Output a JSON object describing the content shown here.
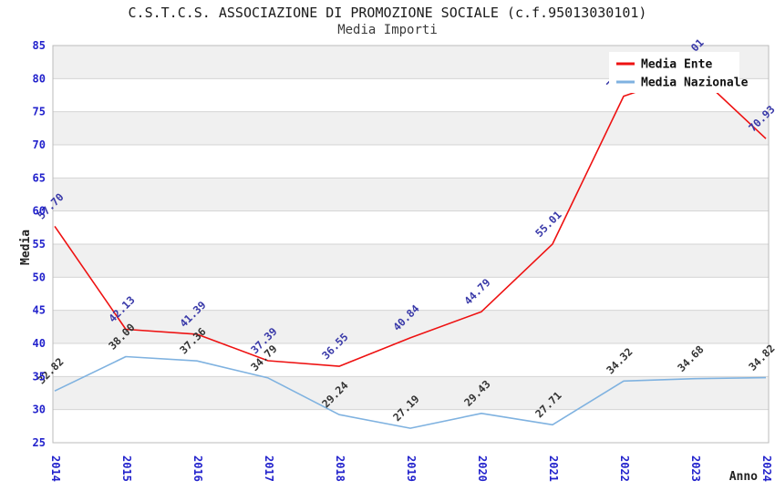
{
  "chart_data": {
    "type": "line",
    "title": "C.S.T.C.S. ASSOCIAZIONE DI PROMOZIONE SOCIALE (c.f.95013030101)",
    "subtitle": "Media Importi",
    "xlabel": "Anno",
    "ylabel": "Media",
    "categories": [
      "2014",
      "2015",
      "2016",
      "2017",
      "2018",
      "2019",
      "2020",
      "2021",
      "2022",
      "2023",
      "2024"
    ],
    "series": [
      {
        "name": "Media Nazionale",
        "color": "#7fb2e0",
        "label_color": "#333333",
        "values": [
          32.82,
          38.0,
          37.36,
          34.79,
          29.24,
          27.19,
          29.43,
          27.71,
          34.32,
          34.68,
          34.82
        ]
      },
      {
        "name": "Media Ente",
        "color": "#ee1111",
        "label_color": "#3838a8",
        "values": [
          57.7,
          42.13,
          41.39,
          37.39,
          36.55,
          40.84,
          44.79,
          55.01,
          77.35,
          81.01,
          70.93
        ]
      }
    ],
    "ylim": [
      25,
      85
    ],
    "ytick_step": 5,
    "grid": "horizontal-bands",
    "legend_position": "top-right",
    "band_colors": [
      "#f0f0f0",
      "#ffffff"
    ],
    "grid_color": "#d4d4d4",
    "border_color": "#bbbbbb",
    "tick_color": "#2222cc",
    "legend_bg": "#ffffff"
  }
}
